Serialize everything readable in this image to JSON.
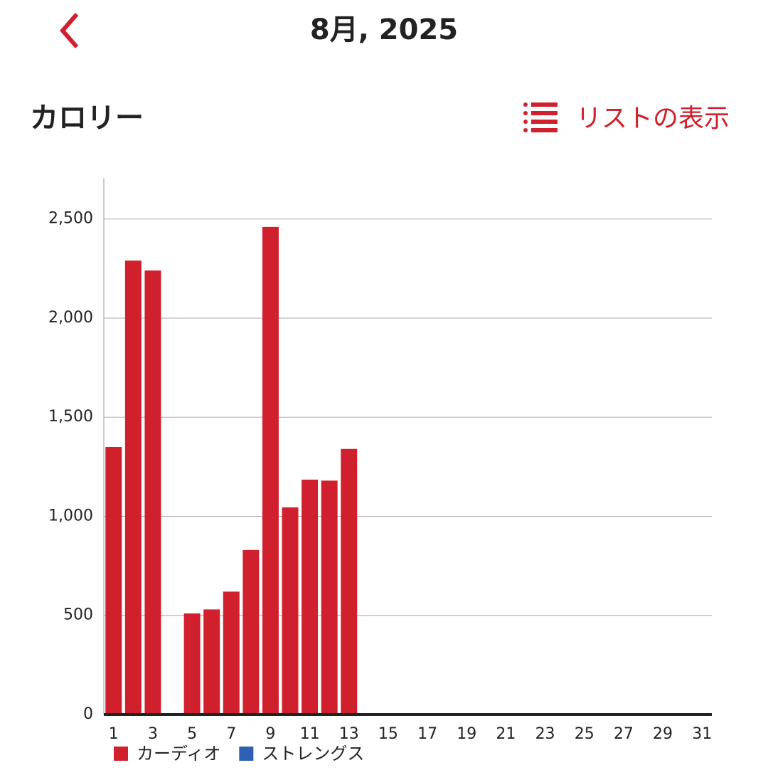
{
  "header": {
    "title": "8月, 2025"
  },
  "section": {
    "title": "カロリー",
    "link": "リストの表示"
  },
  "chart_data": {
    "type": "stacked-bar",
    "categories": [
      "1",
      null,
      "3",
      null,
      "5",
      null,
      "7",
      null,
      "9",
      null,
      "11",
      null,
      "13",
      null,
      "15",
      null,
      "17",
      null,
      "19",
      null,
      "21",
      null,
      "23",
      null,
      "25",
      null,
      "27",
      null,
      "29",
      null,
      "31"
    ],
    "series": [
      {
        "name": "カーディオ",
        "color": "#d0202e",
        "values": [
          1350,
          2290,
          2240,
          0,
          510,
          530,
          620,
          830,
          2460,
          1045,
          1185,
          1180,
          1340,
          null,
          null,
          null,
          null,
          null,
          null,
          null,
          null,
          null,
          null,
          null,
          null,
          null,
          null,
          null,
          null,
          null,
          null
        ]
      },
      {
        "name": "ストレングス",
        "color": "#2e5fb5",
        "values": [
          0,
          0,
          0,
          0,
          0,
          0,
          0,
          0,
          0,
          0,
          0,
          0,
          0,
          null,
          null,
          null,
          null,
          null,
          null,
          null,
          null,
          null,
          null,
          null,
          null,
          null,
          null,
          null,
          null,
          null,
          null
        ]
      }
    ],
    "ylim": [
      0,
      2700
    ],
    "yticks": [
      0,
      500,
      {
        "value": 1000,
        "label": "1,000"
      },
      {
        "value": 1500,
        "label": "1,500"
      },
      {
        "value": 2000,
        "label": "2,000"
      },
      {
        "value": 2500,
        "label": "2,500"
      }
    ],
    "grid": true
  }
}
